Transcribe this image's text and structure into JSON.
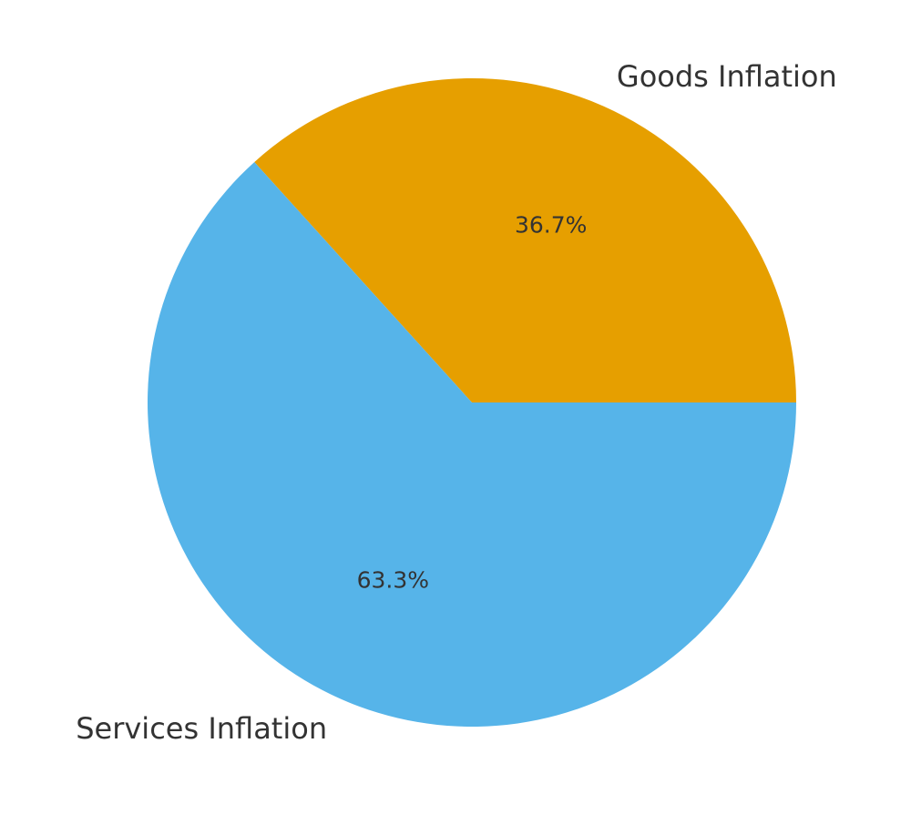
{
  "chart_data": {
    "type": "pie",
    "title": "",
    "categories": [
      "Goods Inflation",
      "Services Inflation"
    ],
    "values": [
      36.7,
      63.3
    ],
    "percent_labels": [
      "36.7%",
      "63.3%"
    ],
    "colors": [
      "#E69F00",
      "#56B4E9"
    ],
    "start_angle_deg": 0,
    "direction": "counterclockwise",
    "legend": "none"
  }
}
